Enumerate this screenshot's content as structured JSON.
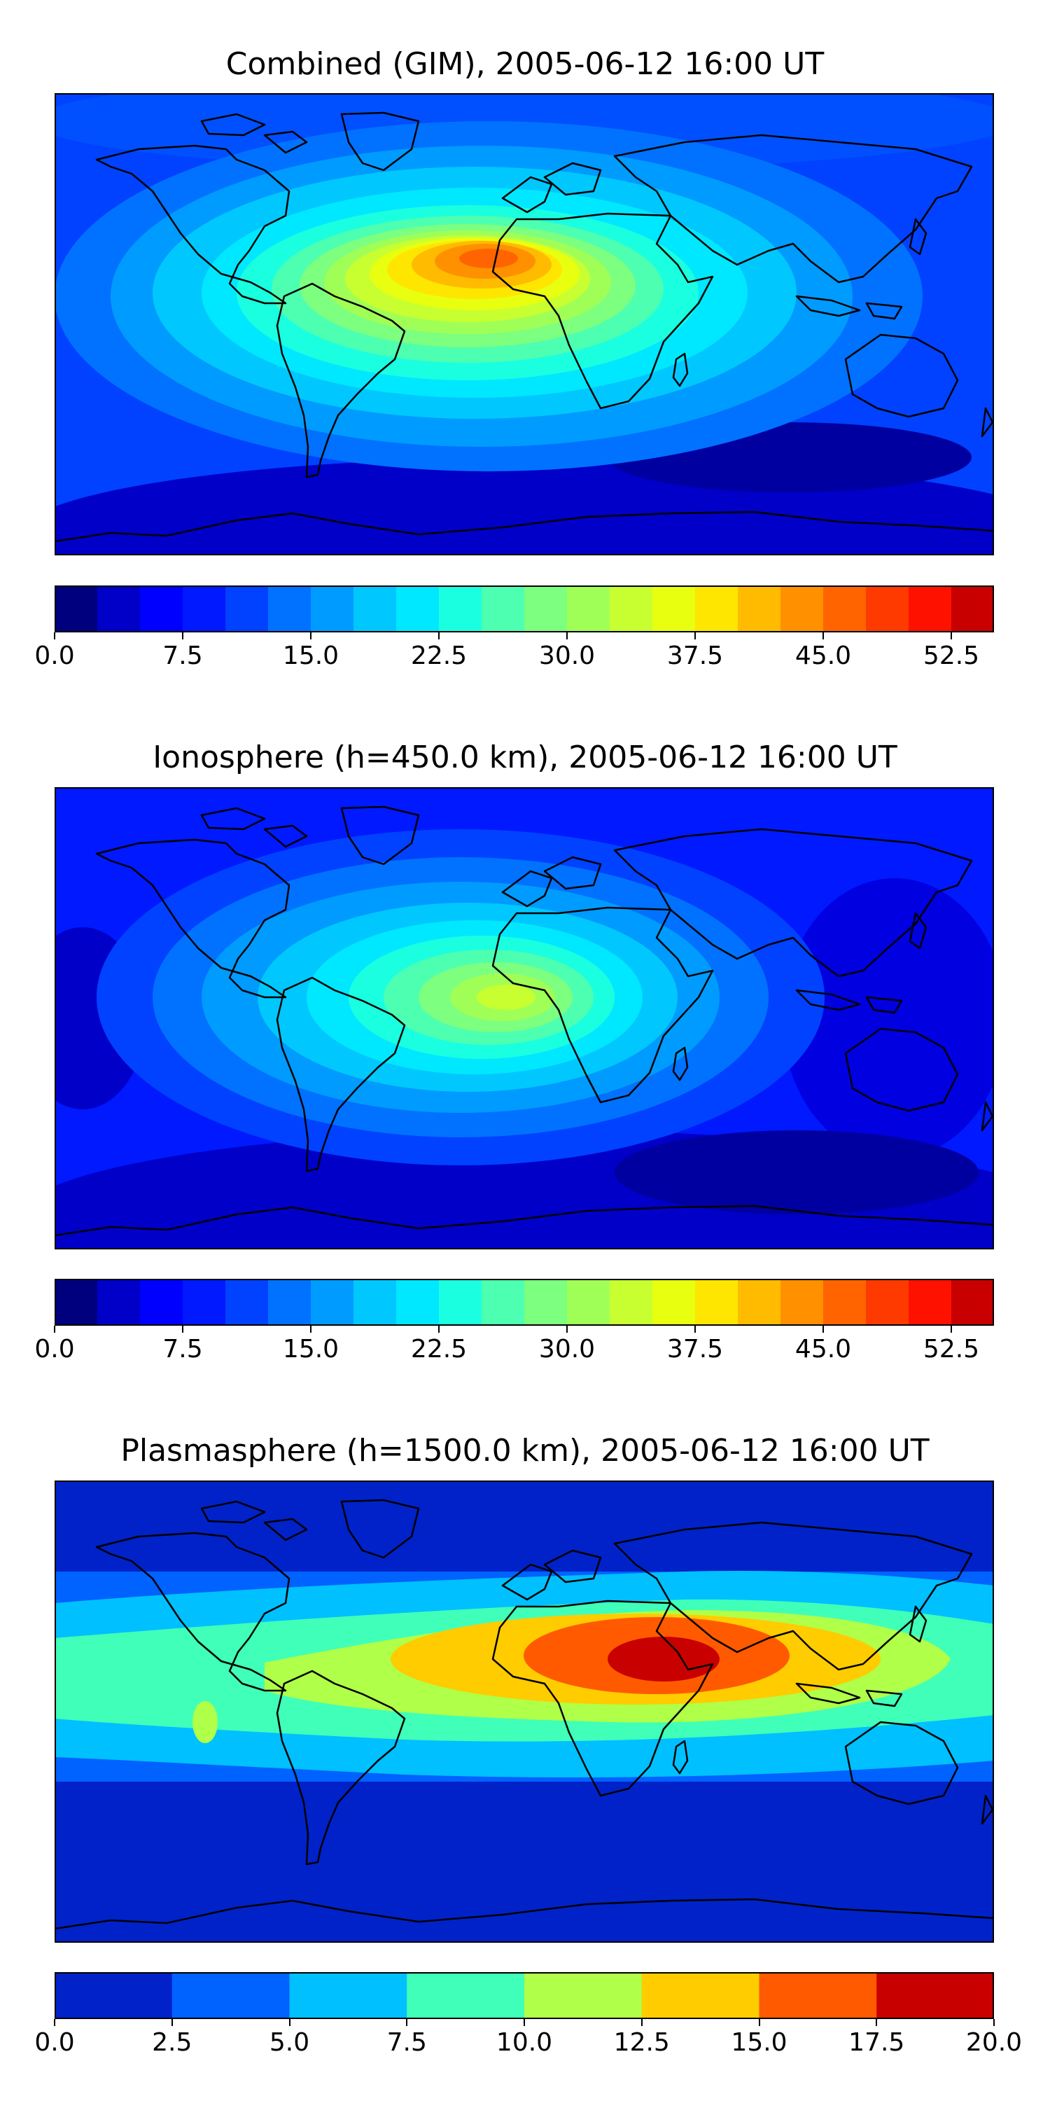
{
  "panels": [
    {
      "id": "combined",
      "title": "Combined (GIM), 2005-06-12 16:00 UT",
      "colorbar": {
        "levels": [
          0.0,
          2.5,
          5.0,
          7.5,
          10.0,
          12.5,
          15.0,
          17.5,
          20.0,
          22.5,
          25.0,
          27.5,
          30.0,
          32.5,
          35.0,
          37.5,
          40.0,
          42.5,
          45.0,
          47.5,
          50.0,
          52.5,
          55.0
        ],
        "tick_labels": [
          "0.0",
          "7.5",
          "15.0",
          "22.5",
          "30.0",
          "37.5",
          "45.0",
          "52.5"
        ],
        "colors": [
          "#00007f",
          "#0000c8",
          "#0000ff",
          "#0019ff",
          "#0042ff",
          "#0072ff",
          "#009bff",
          "#00c8ff",
          "#00e8ff",
          "#1affe0",
          "#4dffb0",
          "#7dff80",
          "#a0ff56",
          "#c8ff30",
          "#e8ff10",
          "#ffe600",
          "#ffbb00",
          "#ff9000",
          "#ff6400",
          "#ff3a00",
          "#ff1100",
          "#c80000",
          "#8c0000"
        ]
      }
    },
    {
      "id": "ionosphere",
      "title": "Ionosphere  (h=450.0 km), 2005-06-12 16:00 UT",
      "colorbar": {
        "levels": [
          0.0,
          2.5,
          5.0,
          7.5,
          10.0,
          12.5,
          15.0,
          17.5,
          20.0,
          22.5,
          25.0,
          27.5,
          30.0,
          32.5,
          35.0,
          37.5,
          40.0,
          42.5,
          45.0,
          47.5,
          50.0,
          52.5,
          55.0
        ],
        "tick_labels": [
          "0.0",
          "7.5",
          "15.0",
          "22.5",
          "30.0",
          "37.5",
          "45.0",
          "52.5"
        ],
        "colors": [
          "#00007f",
          "#0000c8",
          "#0000ff",
          "#0019ff",
          "#0042ff",
          "#0072ff",
          "#009bff",
          "#00c8ff",
          "#00e8ff",
          "#1affe0",
          "#4dffb0",
          "#7dff80",
          "#a0ff56",
          "#c8ff30",
          "#e8ff10",
          "#ffe600",
          "#ffbb00",
          "#ff9000",
          "#ff6400",
          "#ff3a00",
          "#ff1100",
          "#c80000",
          "#8c0000"
        ]
      }
    },
    {
      "id": "plasmasphere",
      "title": "Plasmasphere (h=1500.0 km), 2005-06-12 16:00 UT",
      "colorbar": {
        "levels": [
          0.0,
          2.5,
          5.0,
          7.5,
          10.0,
          12.5,
          15.0,
          17.5,
          20.0
        ],
        "tick_labels": [
          "0.0",
          "2.5",
          "5.0",
          "7.5",
          "10.0",
          "12.5",
          "15.0",
          "17.5",
          "20.0"
        ],
        "colors": [
          "#0022c8",
          "#0062ff",
          "#00c0ff",
          "#40ffb8",
          "#b0ff48",
          "#ffcc00",
          "#ff5a00",
          "#c80000"
        ]
      }
    }
  ]
}
